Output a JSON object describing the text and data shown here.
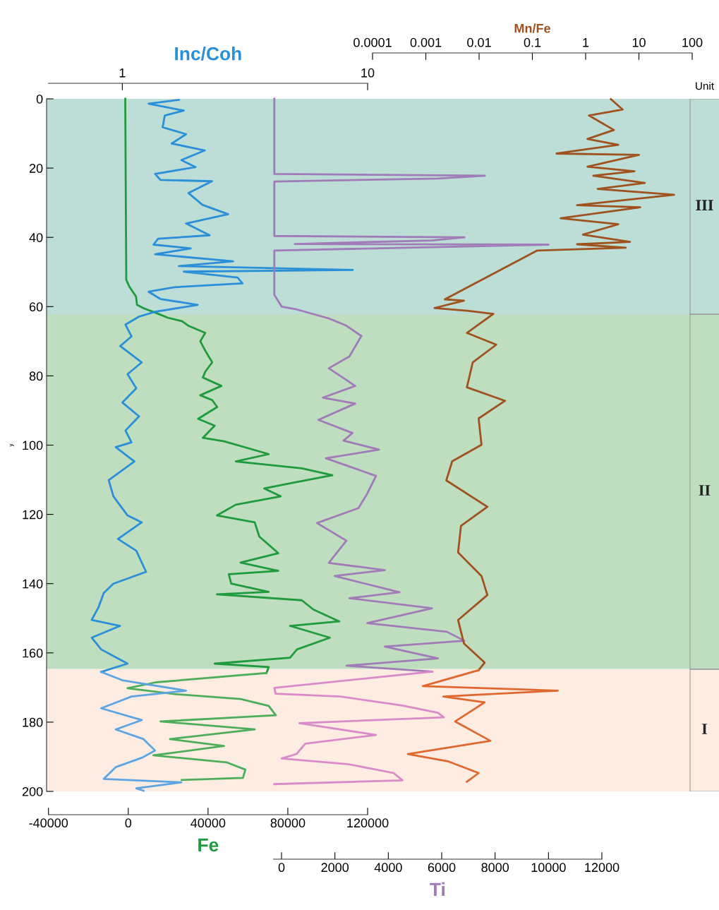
{
  "chart_data": [
    {
      "type": "line",
      "xlabel": "Fe",
      "x2label": "Inc/Coh",
      "ylabel": "y",
      "xlim": [
        -40000,
        120000
      ],
      "xticks": [
        -40000,
        0,
        40000,
        80000,
        120000
      ],
      "x2lim": [
        0.5,
        10
      ],
      "x2ticks": [
        1,
        10
      ],
      "ylim": [
        200,
        0
      ],
      "yticks": [
        0,
        20,
        40,
        60,
        80,
        100,
        120,
        140,
        160,
        180,
        200
      ],
      "log": "x2",
      "grid": false,
      "annotations": [
        "Unit"
      ],
      "bands": [
        {
          "axis": "y",
          "from": 0,
          "to": 62.2,
          "label": "III",
          "color": "#bcded6"
        },
        {
          "axis": "y",
          "from": 62.2,
          "to": 164.7,
          "label": "II",
          "color": "#bfdec0"
        },
        {
          "axis": "y",
          "from": 164.7,
          "to": 200,
          "label": "I",
          "color": "#fcece2"
        }
      ],
      "series": [
        {
          "axis": "x2",
          "color": "#2a8fd8",
          "x": [
            1.7,
            1.28,
            1.78,
            1.49,
            1.46,
            1.82,
            1.59,
            2.17,
            1.74,
            1.99,
            1.36,
            1.43,
            2.32,
            1.86,
            2.12,
            2.7,
            1.82,
            2.27,
            1.4,
            1.34,
            1.9,
            1.36,
            2.83,
            1.7,
            8.7,
            1.78,
            2.95,
            3.09,
            1.63,
            1.28,
            1.43,
            2.03,
            1.36,
            1.17,
            1.03,
            1.09,
            0.98,
            1.2,
            1.05,
            1.14,
            1.0,
            1.17,
            1.03,
            1.09,
            0.94,
            1.12,
            0.88,
            0.92,
            1.05,
            1.2,
            0.96,
            1.14,
            1.25,
            0.92,
            0.84,
            0.8,
            0.75,
            0.98,
            0.75,
            0.82,
            1.05,
            0.82
          ],
          "values": [
            0.3,
            1.4,
            3.4,
            4.8,
            8.2,
            10.2,
            12.9,
            14.9,
            17.7,
            19.7,
            21.7,
            23.4,
            23.8,
            27.2,
            30.6,
            33.3,
            36.0,
            39.4,
            40.4,
            42.1,
            43.2,
            44.9,
            46.9,
            48.3,
            49.4,
            49.9,
            51.6,
            53.3,
            54.4,
            55.7,
            57.8,
            59.5,
            61.5,
            62.9,
            65.2,
            68.6,
            71.4,
            76.1,
            79.5,
            83.6,
            87.7,
            91.7,
            95.8,
            99.2,
            100.6,
            104.7,
            110.1,
            114.8,
            120.3,
            122.3,
            127.1,
            130.5,
            136.6,
            140.0,
            142.7,
            146.8,
            150.5,
            152.2,
            155.6,
            159.0,
            163.1,
            165.5
          ]
        },
        {
          "axis": "x2",
          "color": "#5ca5e2",
          "x": [
            0.82,
            1.0,
            1.82,
            1.09,
            0.82,
            1.2,
            0.94,
            1.22,
            1.36,
            1.2,
            0.94,
            0.84,
            1.74,
            1.14,
            1.22
          ],
          "values": [
            165.5,
            167.9,
            170.9,
            172.6,
            176.0,
            179.4,
            182.1,
            184.9,
            188.2,
            190.3,
            193.0,
            196.4,
            197.4,
            199.1,
            199.8
          ]
        },
        {
          "color": "#1f9a3c",
          "x": [
            -1500,
            -1000,
            700,
            3900,
            4400,
            7800,
            13800,
            19800,
            26900,
            30400,
            38600,
            36100,
            38600,
            42100,
            38600,
            37400,
            46700,
            36100,
            42100,
            44600,
            35000,
            43300,
            37400,
            48100,
            70400,
            53900,
            87000,
            102300,
            83400,
            68100,
            76400,
            53900,
            44500,
            63400,
            65700,
            75200,
            56300,
            75200,
            50400,
            51600,
            70400,
            44500,
            87000,
            92900,
            105800,
            81100,
            101100,
            84600,
            81100,
            43300,
            70400,
            69300
          ],
          "values": [
            0,
            52.3,
            54.4,
            57.1,
            59.5,
            60.5,
            61.8,
            63.2,
            64.2,
            65.6,
            67.6,
            70.0,
            72.7,
            76.1,
            78.8,
            80.5,
            82.9,
            85.6,
            87.0,
            89.0,
            92.4,
            94.4,
            97.9,
            98.9,
            102.6,
            104.7,
            106.7,
            108.7,
            110.8,
            112.5,
            114.8,
            117.2,
            120.3,
            122.3,
            126.4,
            131.2,
            133.9,
            136.3,
            137.3,
            140.0,
            142.4,
            143.1,
            144.8,
            147.5,
            150.9,
            152.2,
            155.6,
            159.0,
            161.4,
            163.1,
            164.1,
            165.8
          ]
        },
        {
          "color": "#4cae5a",
          "x": [
            69300,
            13800,
            -400,
            23300,
            56300,
            70400,
            74000,
            16200,
            63400,
            20900,
            48000,
            12600,
            49200,
            58700,
            57500,
            26800
          ],
          "values": [
            165.8,
            168.5,
            170.2,
            171.9,
            173.3,
            175.3,
            178.0,
            179.8,
            182.1,
            184.9,
            186.9,
            189.6,
            191.6,
            193.7,
            196.1,
            196.7
          ]
        }
      ]
    },
    {
      "type": "line",
      "xlabel": "Ti",
      "x2label": "Mn/Fe",
      "xlim": [
        -300,
        12000
      ],
      "xticks": [
        0,
        2000,
        4000,
        6000,
        8000,
        10000,
        12000
      ],
      "x2lim": [
        0.0001,
        100
      ],
      "x2ticks": [
        0.0001,
        0.001,
        0.01,
        0.1,
        1,
        10,
        100
      ],
      "ylim": [
        200,
        0
      ],
      "log": "x2",
      "tick_labels": "x",
      "grid": false,
      "series": [
        {
          "color": "#a07bb8",
          "x": [
            -270,
            -270,
            7620,
            5860,
            -270,
            -270,
            6850,
            5640,
            500,
            10000,
            -270,
            -270,
            5,
            560,
            1770,
            2430,
            2990,
            2540,
            1770,
            2760,
            1550,
            2760,
            1380,
            2660,
            2320,
            3650,
            1660,
            3540,
            3210,
            2880,
            1330,
            2430,
            1770,
            3870,
            1990,
            4420,
            2540,
            5640,
            3210,
            6190,
            6850,
            3870,
            5860,
            2430,
            5640
          ],
          "values": [
            0,
            21.7,
            22.2,
            23.0,
            23.9,
            39.6,
            40.0,
            40.9,
            41.9,
            42.1,
            43.8,
            56.6,
            60.0,
            60.8,
            63.4,
            65.5,
            68.5,
            74.4,
            77.8,
            82.9,
            86.3,
            88.0,
            92.7,
            96.5,
            98.7,
            101.3,
            103.8,
            108.9,
            114.0,
            118.2,
            122.5,
            127.6,
            134.0,
            136.1,
            137.8,
            142.5,
            144.2,
            147.1,
            151.4,
            153.9,
            156.5,
            158.2,
            161.6,
            163.7,
            165.4
          ]
        },
        {
          "color": "#d98bc9",
          "x": [
            5640,
            -270,
            -220,
            2210,
            4530,
            5860,
            6080,
            670,
            3540,
            890,
            560,
            5,
            2540,
            4200,
            4530,
            -270
          ],
          "values": [
            165.4,
            170.1,
            171.8,
            172.6,
            175.2,
            177.3,
            178.6,
            180.3,
            183.7,
            186.2,
            189.2,
            190.5,
            192.2,
            194.7,
            196.8,
            197.9
          ]
        },
        {
          "axis": "x2",
          "color": "#a0521e",
          "x": [
            2.98,
            4.96,
            1.15,
            3.39,
            1.08,
            4.1,
            0.284,
            10,
            1.08,
            8.24,
            1.39,
            12.9,
            1.68,
            45.8,
            0.69,
            10.6,
            0.34,
            4.1,
            0.89,
            6.8,
            0.69,
            5.64,
            0.124,
            0.00227,
            0.0052,
            0.00146,
            0.0059,
            0.0185,
            0.0059,
            0.021,
            0.0076,
            0.0059,
            0.0307,
            0.0098,
            0.0111,
            0.00312,
            0.00242,
            0.0143,
            0.00457,
            0.00403,
            0.0111,
            0.0143,
            0.00403,
            0.0052,
            0.0127,
            0.0098
          ],
          "values": [
            0.1,
            3.1,
            4.8,
            9.0,
            11.6,
            13.3,
            15.8,
            16.2,
            19.6,
            20.9,
            22.2,
            24.3,
            26.0,
            27.7,
            30.7,
            31.3,
            34.5,
            36.2,
            39.2,
            41.3,
            42.0,
            43.0,
            43.8,
            57.9,
            58.3,
            60.4,
            61.2,
            62.1,
            67.6,
            71.0,
            76.1,
            83.3,
            87.2,
            92.3,
            99.9,
            104.7,
            110.2,
            117.8,
            123.3,
            131.0,
            137.8,
            143.3,
            150.5,
            157.3,
            162.8,
            165.0
          ]
        },
        {
          "axis": "x2",
          "color": "#e0682f",
          "x": [
            0.0098,
            0.00088,
            0.3,
            0.00213,
            0.0127,
            0.00355,
            0.0163,
            0.00046,
            0.00258,
            0.0098,
            0.0059
          ],
          "values": [
            165.0,
            169.6,
            170.9,
            172.6,
            174.3,
            179.8,
            185.4,
            189.2,
            191.3,
            194.7,
            197.2
          ]
        }
      ]
    }
  ]
}
